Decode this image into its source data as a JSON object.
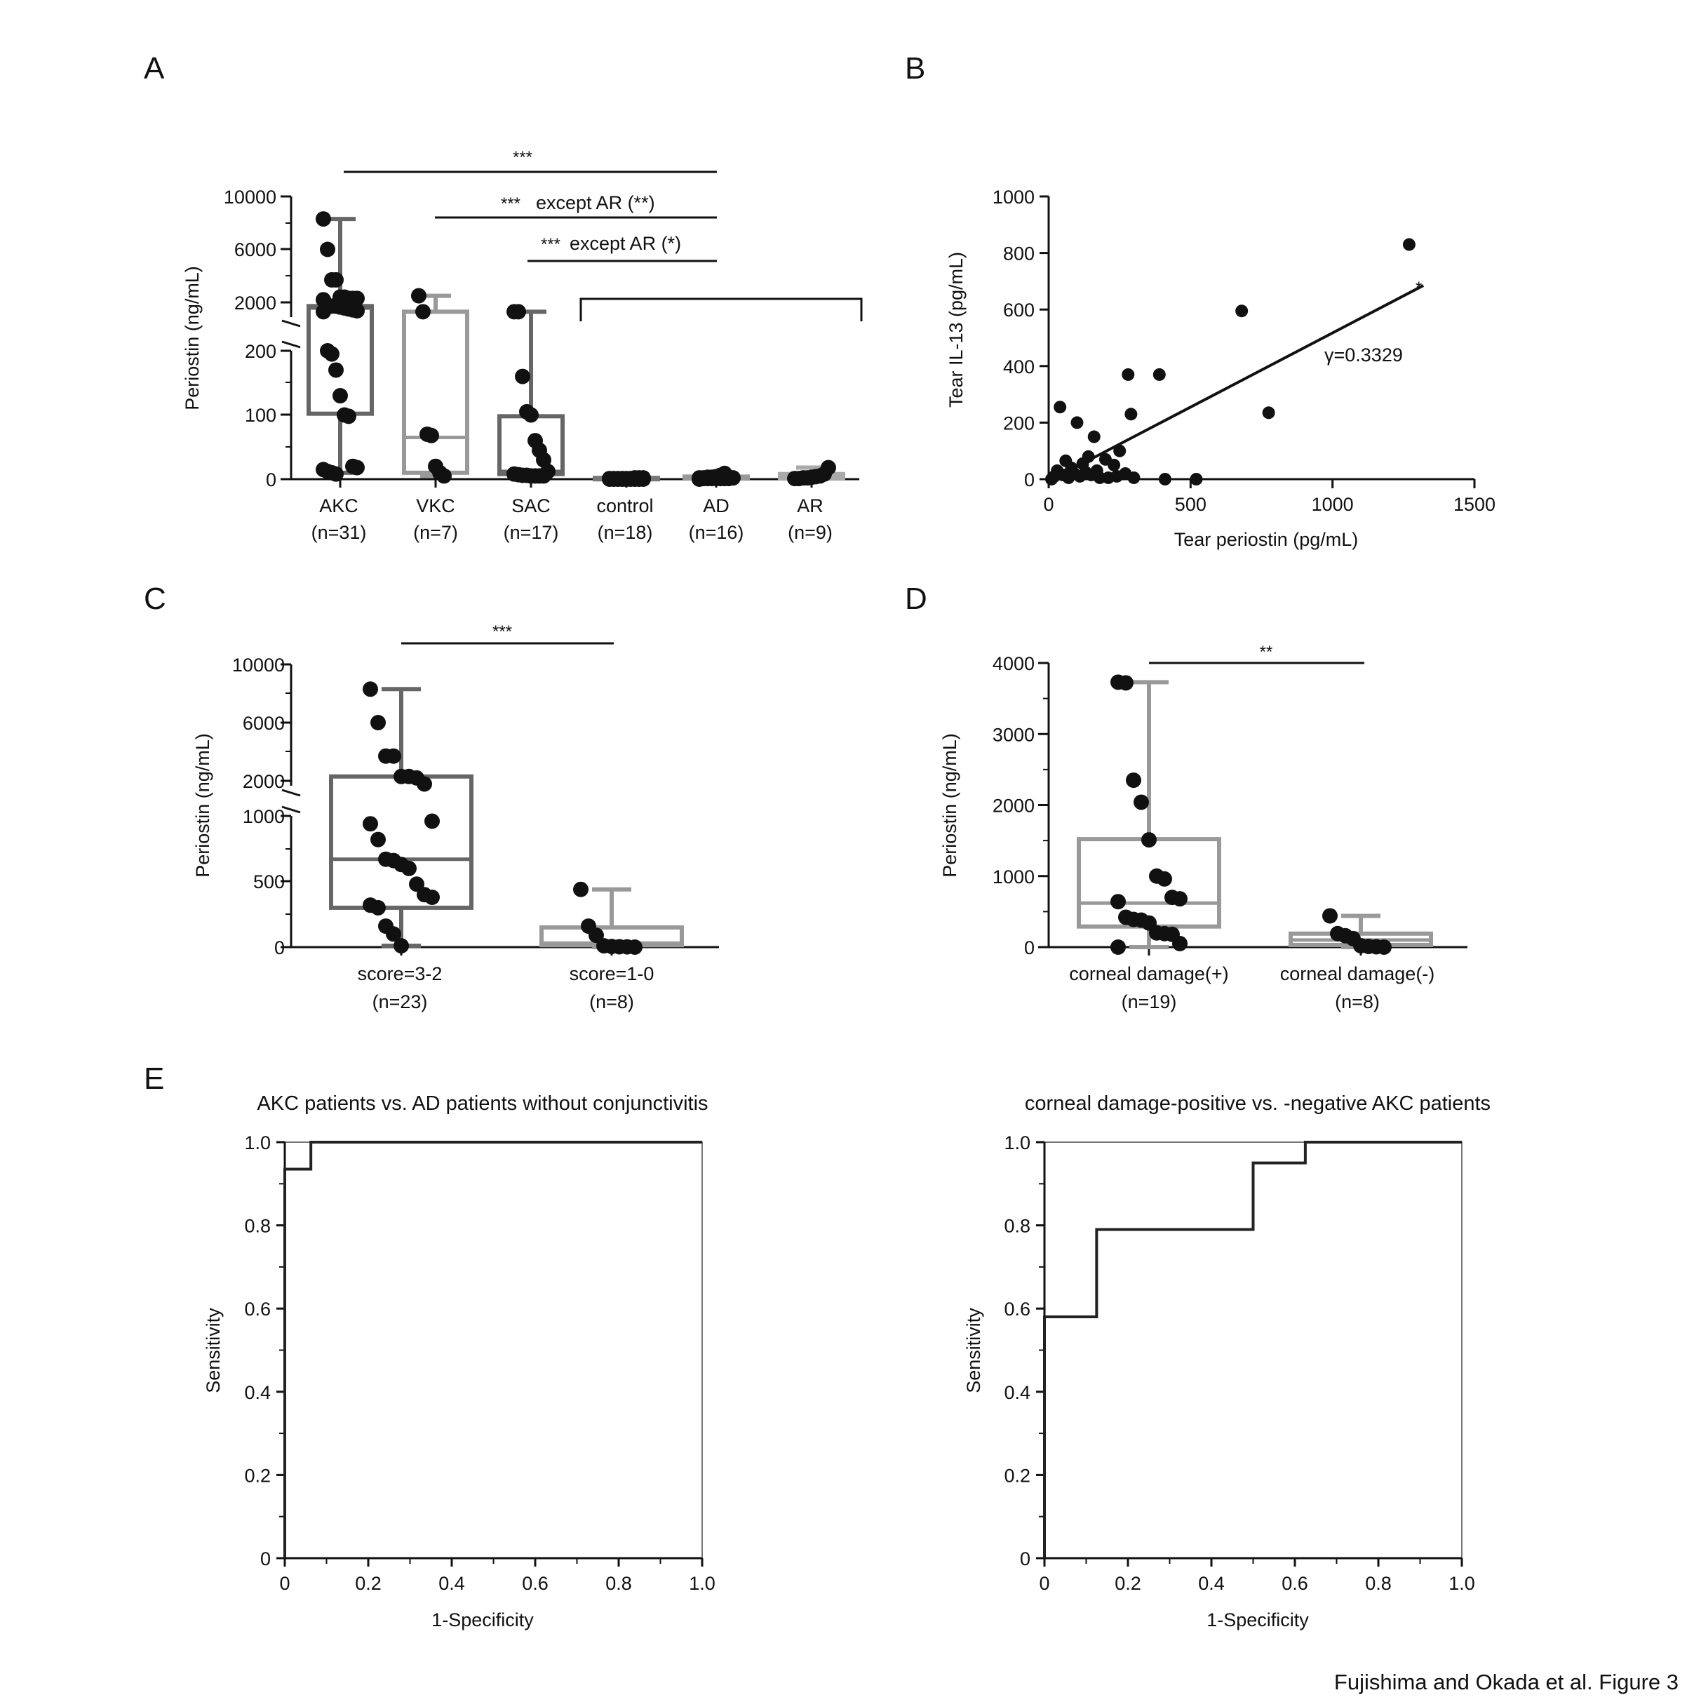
{
  "footer": "Fujishima and Okada et al. Figure 3",
  "panel_a": {
    "letter": "A",
    "ylabel": "Periostin (ng/mL)",
    "ticks": {
      "t0": "0",
      "t100": "100",
      "t200": "200",
      "t2000": "2000",
      "t6000": "6000",
      "t10000": "10000"
    },
    "groups": [
      {
        "name": "AKC",
        "n": "(n=31)"
      },
      {
        "name": "VKC",
        "n": "(n=7)"
      },
      {
        "name": "SAC",
        "n": "(n=17)"
      },
      {
        "name": "control",
        "n": "(n=18)"
      },
      {
        "name": "AD",
        "n": "(n=16)"
      },
      {
        "name": "AR",
        "n": "(n=9)"
      }
    ],
    "sig1": "***",
    "sig2_stars": "***",
    "sig2_text": "except AR (**)",
    "sig3_stars": "***",
    "sig3_text": "except AR (*)"
  },
  "panel_b": {
    "letter": "B",
    "xlabel": "Tear periostin (pg/mL)",
    "ylabel": "Tear IL-13 (pg/mL)",
    "annotation": "γ=0.3329",
    "star": "*",
    "xticks": [
      "0",
      "500",
      "1000",
      "1500"
    ],
    "yticks": [
      "0",
      "200",
      "400",
      "600",
      "800",
      "1000"
    ]
  },
  "panel_c": {
    "letter": "C",
    "ylabel": "Periostin (ng/mL)",
    "ticks": {
      "t0": "0",
      "t500": "500",
      "t1000": "1000",
      "t2000": "2000",
      "t6000": "6000",
      "t10000": "10000"
    },
    "groups": [
      {
        "name": "score=3-2",
        "n": "(n=23)"
      },
      {
        "name": "score=1-0",
        "n": "(n=8)"
      }
    ],
    "sig": "***"
  },
  "panel_d": {
    "letter": "D",
    "ylabel": "Periostin (ng/mL)",
    "yticks": [
      "0",
      "1000",
      "2000",
      "3000",
      "4000"
    ],
    "groups": [
      {
        "name": "corneal damage(+)",
        "n": "(n=19)"
      },
      {
        "name": "corneal damage(-)",
        "n": "(n=8)"
      }
    ],
    "sig": "**"
  },
  "panel_e": {
    "letter": "E",
    "ticks": [
      "0",
      "0.2",
      "0.4",
      "0.6",
      "0.8",
      "1.0"
    ],
    "xlabel": "1-Specificity",
    "ylabel": "Sensitivity",
    "left_title": "AKC patients vs. AD patients without conjunctivitis",
    "right_title": "corneal damage-positive vs. -negative AKC patients"
  },
  "chart_data": [
    {
      "panel": "A",
      "type": "box",
      "ylabel": "Periostin (ng/mL)",
      "y_axis": "broken: linear 0-200, break, linear 2000-10000",
      "categories": [
        "AKC",
        "VKC",
        "SAC",
        "control",
        "AD",
        "AR"
      ],
      "sample_sizes": [
        31,
        7,
        17,
        18,
        16,
        9
      ],
      "boxes": [
        {
          "min": 10,
          "q1": 102,
          "median": 1400,
          "q3": 1600,
          "max": 8300
        },
        {
          "min": 5,
          "q1": 10,
          "median": 65,
          "q3": 1000,
          "max": 2500
        },
        {
          "min": 5,
          "q1": 8,
          "median": 12,
          "q3": 98,
          "max": 1000
        },
        {
          "min": 0,
          "q1": 0,
          "median": 1,
          "q3": 2,
          "max": 3
        },
        {
          "min": 0,
          "q1": 1,
          "median": 2,
          "q3": 4,
          "max": 9
        },
        {
          "min": 0,
          "q1": 1,
          "median": 3,
          "q3": 8,
          "max": 18
        }
      ],
      "points": [
        [
          8300,
          6000,
          3700,
          3700,
          2400,
          2400,
          2300,
          2300,
          2300,
          2200,
          1700,
          1600,
          1600,
          1500,
          1400,
          1300,
          1200,
          1100,
          1000,
          200,
          195,
          170,
          130,
          100,
          98,
          20,
          18,
          15,
          12,
          10,
          8
        ],
        [
          2500,
          1000,
          70,
          68,
          20,
          10,
          5
        ],
        [
          1000,
          1000,
          160,
          105,
          100,
          60,
          45,
          30,
          12,
          8,
          7,
          6,
          6,
          5,
          5,
          5,
          5
        ],
        [
          0,
          0,
          0,
          0,
          0,
          0,
          0,
          0,
          0,
          1,
          1,
          1,
          1,
          1,
          1,
          2,
          2,
          2
        ],
        [
          0,
          1,
          1,
          1,
          1,
          1,
          1,
          1,
          2,
          2,
          2,
          3,
          3,
          4,
          6,
          9
        ],
        [
          1,
          1,
          2,
          2,
          3,
          4,
          5,
          8,
          18
        ]
      ],
      "significance": [
        {
          "from": "AKC",
          "to": "AD",
          "label": "***"
        },
        {
          "from": "VKC",
          "to": "AD",
          "label": "*** except AR (**)"
        },
        {
          "from": "SAC",
          "to": "AD",
          "label": "*** except AR (*)"
        }
      ]
    },
    {
      "panel": "B",
      "type": "scatter",
      "xlabel": "Tear periostin (pg/mL)",
      "ylabel": "Tear IL-13 (pg/mL)",
      "xlim": [
        0,
        1500
      ],
      "ylim": [
        0,
        1000
      ],
      "annotation": "γ=0.3329",
      "x": [
        1270,
        680,
        775,
        280,
        390,
        290,
        40,
        100,
        160,
        250,
        60,
        120,
        140,
        200,
        230,
        270,
        80,
        30,
        50,
        170,
        210,
        240,
        300,
        410,
        520,
        20,
        70,
        90,
        110,
        130,
        150,
        180,
        10
      ],
      "y": [
        830,
        595,
        235,
        370,
        370,
        230,
        255,
        200,
        150,
        100,
        65,
        55,
        80,
        70,
        50,
        20,
        40,
        30,
        15,
        30,
        5,
        10,
        5,
        0,
        0,
        10,
        5,
        20,
        10,
        25,
        15,
        5,
        0
      ],
      "fit_line": {
        "x": [
          90,
          1320
        ],
        "y": [
          40,
          685
        ]
      }
    },
    {
      "panel": "C",
      "type": "box",
      "ylabel": "Periostin (ng/mL)",
      "y_axis": "broken: linear 0-1000, break, linear 2000-10000",
      "categories": [
        "score=3-2",
        "score=1-0"
      ],
      "sample_sizes": [
        23,
        8
      ],
      "boxes": [
        {
          "min": 10,
          "q1": 300,
          "median": 670,
          "q3": 2300,
          "max": 8300
        },
        {
          "min": 0,
          "q1": 15,
          "median": 30,
          "q3": 150,
          "max": 440
        }
      ],
      "points": [
        [
          8300,
          6000,
          3700,
          3700,
          2300,
          2300,
          2200,
          1900,
          960,
          940,
          820,
          670,
          660,
          630,
          600,
          480,
          400,
          380,
          320,
          300,
          160,
          100,
          10
        ],
        [
          440,
          160,
          90,
          10,
          5,
          3,
          2,
          0
        ]
      ],
      "significance": [
        {
          "from": "score=3-2",
          "to": "score=1-0",
          "label": "***"
        }
      ]
    },
    {
      "panel": "D",
      "type": "box",
      "ylabel": "Periostin (ng/mL)",
      "ylim": [
        0,
        4000
      ],
      "categories": [
        "corneal damage(+)",
        "corneal damage(-)"
      ],
      "sample_sizes": [
        19,
        8
      ],
      "boxes": [
        {
          "min": 0,
          "q1": 290,
          "median": 620,
          "q3": 1520,
          "max": 3730
        },
        {
          "min": 0,
          "q1": 30,
          "median": 100,
          "q3": 190,
          "max": 440
        }
      ],
      "points": [
        [
          3730,
          3720,
          2350,
          2040,
          1510,
          1000,
          960,
          700,
          680,
          640,
          420,
          390,
          380,
          340,
          200,
          190,
          180,
          50,
          0
        ],
        [
          440,
          190,
          160,
          120,
          20,
          10,
          5,
          0
        ]
      ],
      "significance": [
        {
          "from": "corneal damage(+)",
          "to": "corneal damage(-)",
          "label": "**"
        }
      ]
    },
    {
      "panel": "E-left",
      "type": "line",
      "title": "AKC patients vs. AD patients without conjunctivitis",
      "xlabel": "1-Specificity",
      "ylabel": "Sensitivity",
      "xlim": [
        0,
        1
      ],
      "ylim": [
        0,
        1
      ],
      "x": [
        0,
        0,
        0.0625,
        0.0625,
        1.0
      ],
      "y": [
        0,
        0.935,
        0.935,
        1.0,
        1.0
      ]
    },
    {
      "panel": "E-right",
      "type": "line",
      "title": "corneal damage-positive vs. -negative AKC patients",
      "xlabel": "1-Specificity",
      "ylabel": "Sensitivity",
      "xlim": [
        0,
        1
      ],
      "ylim": [
        0,
        1
      ],
      "x": [
        0,
        0,
        0.125,
        0.125,
        0.5,
        0.5,
        0.625,
        0.625,
        1.0
      ],
      "y": [
        0,
        0.58,
        0.58,
        0.79,
        0.79,
        0.95,
        0.95,
        1.0,
        1.0
      ]
    }
  ]
}
